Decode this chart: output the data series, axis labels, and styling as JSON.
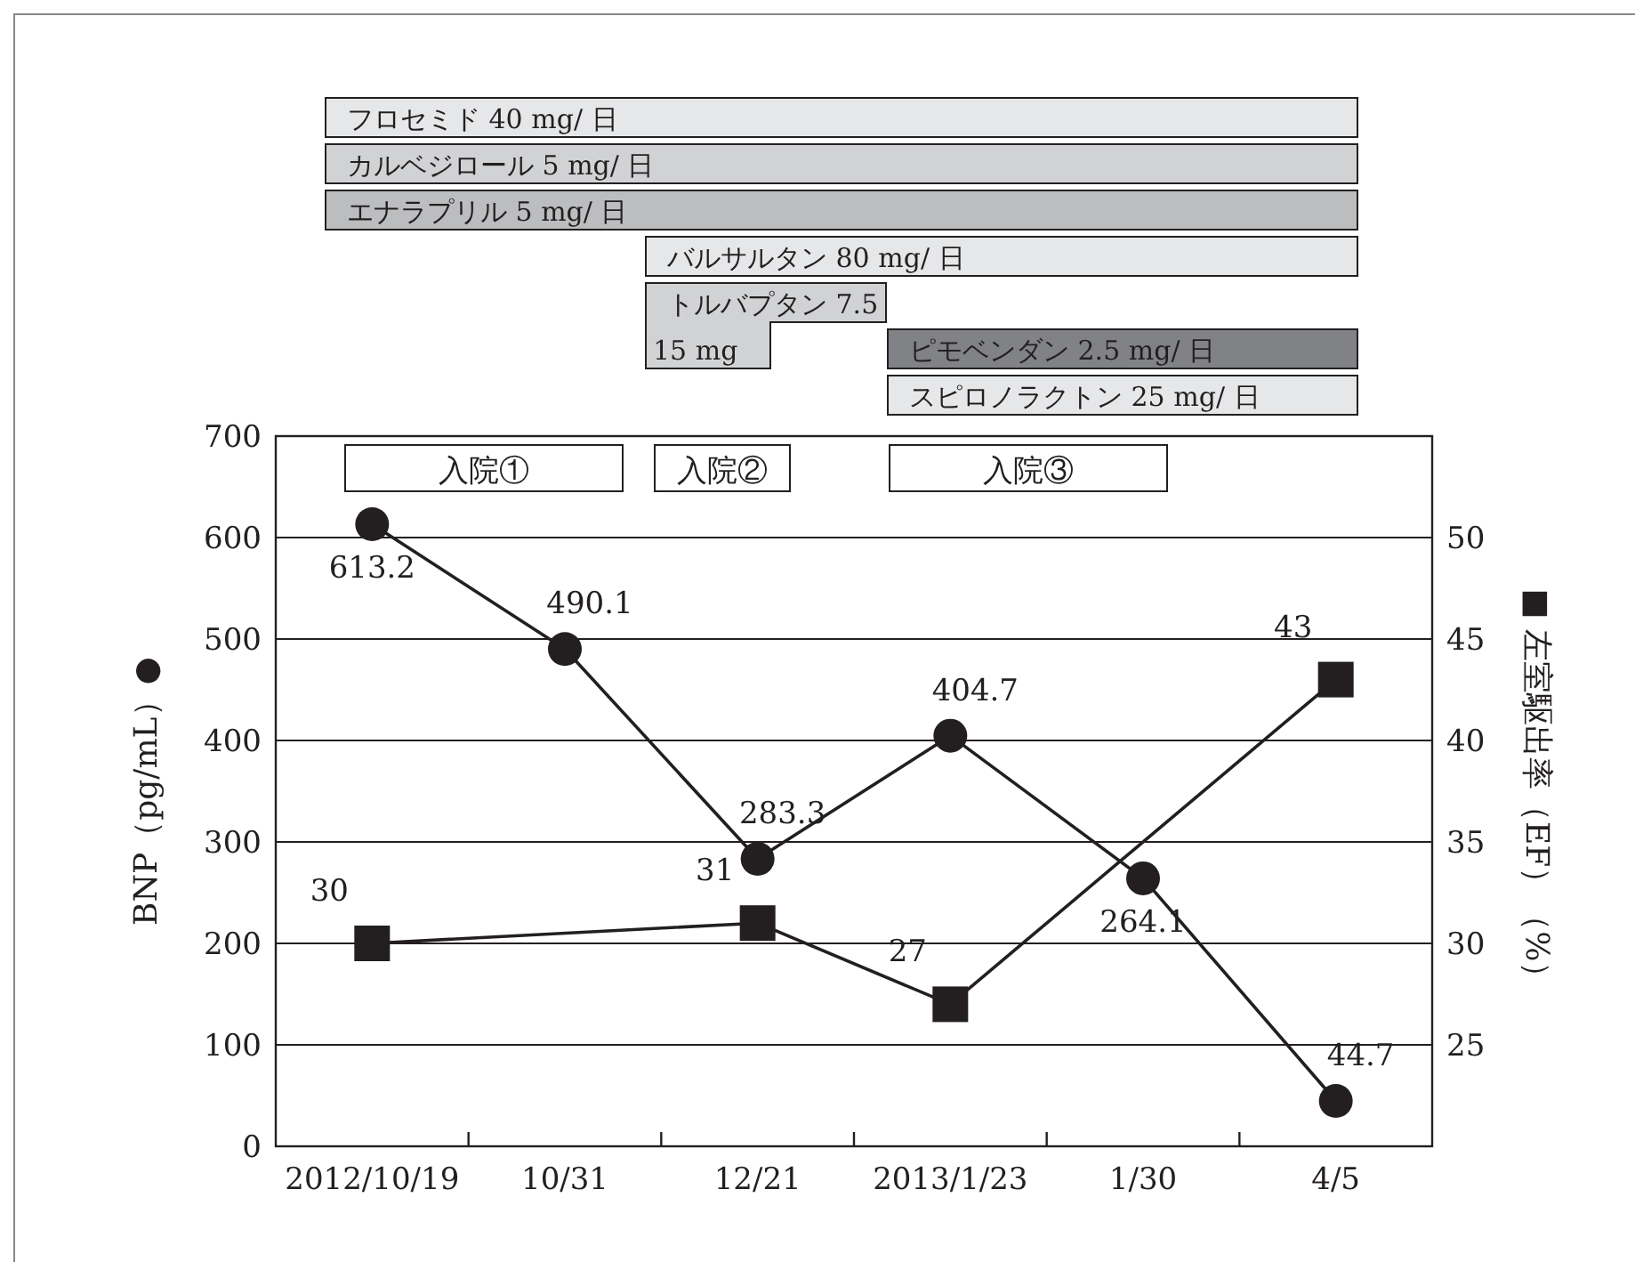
{
  "chart_data": {
    "type": "line",
    "categories": [
      "2012/10/19",
      "10/31",
      "12/21",
      "2013/1/23",
      "1/30",
      "4/5"
    ],
    "ylabel": "BNP（pg/mL）●",
    "y2label": "■ 左室駆出率（EF）（%）",
    "ylim": [
      0,
      700
    ],
    "yticks": [
      0,
      100,
      200,
      300,
      400,
      500,
      600,
      700
    ],
    "y2lim": [
      20,
      55
    ],
    "y2ticks": [
      25,
      30,
      35,
      40,
      45,
      50
    ],
    "grid": "y",
    "data_labels": true,
    "series": [
      {
        "color": "#231f20",
        "marker": "circle",
        "values": [
          613.2,
          490.1,
          283.3,
          404.7,
          264.1,
          44.7
        ]
      },
      {
        "color": "#231f20",
        "marker": "square",
        "axis": "y2",
        "values": [
          30,
          null,
          31,
          27,
          null,
          43
        ]
      }
    ],
    "annotations": [
      "フロセミド 40 mg/ 日",
      "カルベジロール 5 mg/ 日",
      "エナラプリル 5 mg/ 日",
      "バルサルタン 80 mg/ 日",
      "トルバプタン 7.5",
      "15 mg",
      "ピモベンダン 2.5 mg/ 日",
      "スピロノラクトン 25 mg/ 日",
      "入院①",
      "入院②",
      "入院③"
    ]
  }
}
